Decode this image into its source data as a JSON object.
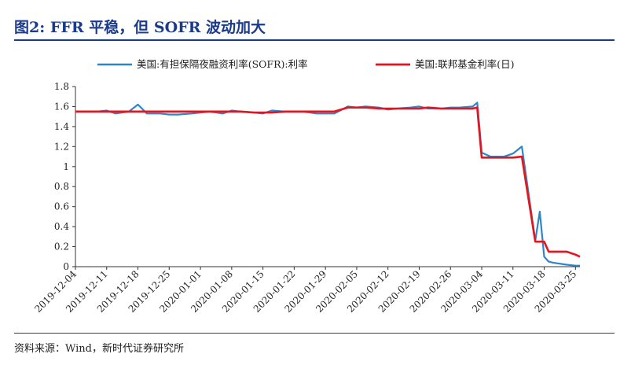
{
  "header": {
    "title": "图2:  FFR 平稳，但 SOFR 波动加大"
  },
  "footer": {
    "source": "资料来源：Wind，新时代证券研究所"
  },
  "chart_data": {
    "type": "line",
    "title": "",
    "xlabel": "",
    "ylabel": "",
    "ylim": [
      0,
      1.8
    ],
    "yticks": [
      "0",
      "0.2",
      "0.4",
      "0.6",
      "0.8",
      "1",
      "1.2",
      "1.4",
      "1.6",
      "1.8"
    ],
    "xticks": [
      "2019-12-04",
      "2019-12-11",
      "2019-12-18",
      "2019-12-25",
      "2020-01-01",
      "2020-01-08",
      "2020-01-15",
      "2020-01-22",
      "2020-01-29",
      "2020-02-05",
      "2020-02-12",
      "2020-02-19",
      "2020-02-26",
      "2020-03-04",
      "2020-03-11",
      "2020-03-18",
      "2020-03-25"
    ],
    "x": [
      "2019-12-04",
      "2019-12-06",
      "2019-12-09",
      "2019-12-11",
      "2019-12-13",
      "2019-12-16",
      "2019-12-18",
      "2019-12-20",
      "2019-12-23",
      "2019-12-25",
      "2019-12-27",
      "2019-12-30",
      "2020-01-01",
      "2020-01-03",
      "2020-01-06",
      "2020-01-08",
      "2020-01-10",
      "2020-01-13",
      "2020-01-15",
      "2020-01-17",
      "2020-01-20",
      "2020-01-22",
      "2020-01-24",
      "2020-01-27",
      "2020-01-29",
      "2020-01-31",
      "2020-02-03",
      "2020-02-05",
      "2020-02-07",
      "2020-02-10",
      "2020-02-12",
      "2020-02-14",
      "2020-02-17",
      "2020-02-19",
      "2020-02-21",
      "2020-02-24",
      "2020-02-26",
      "2020-02-28",
      "2020-03-02",
      "2020-03-03",
      "2020-03-04",
      "2020-03-06",
      "2020-03-09",
      "2020-03-11",
      "2020-03-13",
      "2020-03-16",
      "2020-03-17",
      "2020-03-18",
      "2020-03-19",
      "2020-03-20",
      "2020-03-23",
      "2020-03-25",
      "2020-03-26"
    ],
    "series": [
      {
        "name": "美国:有担保隔夜融资利率(SOFR):利率",
        "color": "#2e86c8",
        "values": [
          1.55,
          1.55,
          1.55,
          1.56,
          1.53,
          1.55,
          1.62,
          1.53,
          1.53,
          1.52,
          1.52,
          1.53,
          1.54,
          1.55,
          1.53,
          1.56,
          1.55,
          1.54,
          1.53,
          1.56,
          1.55,
          1.55,
          1.55,
          1.53,
          1.53,
          1.53,
          1.6,
          1.59,
          1.6,
          1.59,
          1.57,
          1.58,
          1.59,
          1.6,
          1.58,
          1.58,
          1.59,
          1.59,
          1.6,
          1.64,
          1.14,
          1.1,
          1.1,
          1.13,
          1.2,
          0.26,
          0.55,
          0.1,
          0.05,
          0.04,
          0.02,
          0.01,
          0.01
        ]
      },
      {
        "name": "美国:联邦基金利率(日)",
        "color": "#e8131d",
        "values": [
          1.55,
          1.55,
          1.55,
          1.55,
          1.55,
          1.55,
          1.55,
          1.55,
          1.55,
          1.55,
          1.55,
          1.55,
          1.55,
          1.55,
          1.55,
          1.55,
          1.55,
          1.54,
          1.54,
          1.54,
          1.55,
          1.55,
          1.55,
          1.55,
          1.55,
          1.55,
          1.59,
          1.59,
          1.59,
          1.58,
          1.58,
          1.58,
          1.58,
          1.58,
          1.59,
          1.58,
          1.58,
          1.58,
          1.58,
          1.59,
          1.09,
          1.09,
          1.09,
          1.09,
          1.1,
          0.25,
          0.25,
          0.25,
          0.15,
          0.15,
          0.15,
          0.12,
          0.1
        ]
      }
    ],
    "legend_position": "top"
  }
}
